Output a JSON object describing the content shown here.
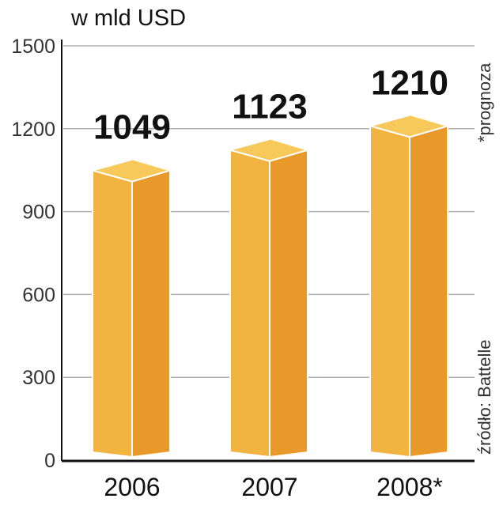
{
  "chart_data": {
    "type": "bar",
    "title": "w mld USD",
    "categories": [
      "2006",
      "2007",
      "2008*"
    ],
    "values": [
      1049,
      1123,
      1210
    ],
    "data_labels": [
      "1049",
      "1123",
      "1210"
    ],
    "ylim": [
      0,
      1500
    ],
    "yticks": [
      0,
      300,
      600,
      900,
      1200,
      1500
    ],
    "grid": true,
    "style": "3d-columns",
    "colors": {
      "top": "#f7c95a",
      "front": "#f2b440",
      "side": "#e8992a",
      "grid": "#b0b0b0"
    },
    "notes": [
      "*prognoza",
      "źródło: Battelle"
    ]
  }
}
